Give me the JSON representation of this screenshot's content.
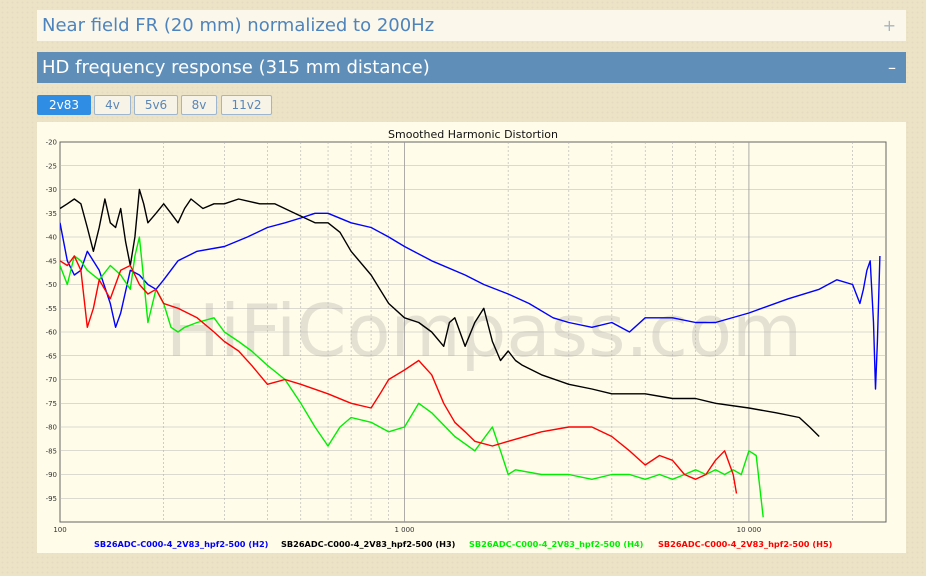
{
  "sections": {
    "near_field": {
      "title": "Near field FR (20 mm) normalized to 200Hz",
      "toggle": "+"
    },
    "hd_response": {
      "title": "HD frequency response (315 mm distance)",
      "toggle": "–"
    }
  },
  "tabs": [
    {
      "label": "2v83",
      "active": true
    },
    {
      "label": "4v",
      "active": false
    },
    {
      "label": "5v6",
      "active": false
    },
    {
      "label": "8v",
      "active": false
    },
    {
      "label": "11v2",
      "active": false
    }
  ],
  "watermark": "HiFiCompass.com",
  "colors": {
    "h2": "#0000ff",
    "h3": "#000000",
    "h4": "#00ee00",
    "h5": "#ff0000",
    "accent": "#5f8fb9"
  },
  "chart_data": {
    "type": "line",
    "title": "Smoothed Harmonic Distortion",
    "xlabel": "",
    "ylabel": "",
    "xscale": "log",
    "xlim": [
      100,
      25000
    ],
    "ylim": [
      -100,
      -20
    ],
    "x_tick_labels": [
      {
        "value": 100,
        "label": "100"
      },
      {
        "value": 1000,
        "label": "1 000"
      },
      {
        "value": 10000,
        "label": "10 000"
      }
    ],
    "y_ticks": [
      -20,
      -25,
      -30,
      -35,
      -40,
      -45,
      -50,
      -55,
      -60,
      -65,
      -70,
      -75,
      -80,
      -85,
      -90,
      -95
    ],
    "grid": true,
    "legend_position": "bottom",
    "series": [
      {
        "name": "SB26ADC-C000-4_2V83_hpf2-500 (H2)",
        "color": "#0000ff",
        "points": [
          [
            100,
            -37
          ],
          [
            105,
            -45
          ],
          [
            110,
            -48
          ],
          [
            115,
            -47
          ],
          [
            120,
            -43
          ],
          [
            130,
            -47
          ],
          [
            140,
            -54
          ],
          [
            145,
            -59
          ],
          [
            150,
            -56
          ],
          [
            160,
            -47
          ],
          [
            170,
            -48
          ],
          [
            180,
            -50
          ],
          [
            190,
            -51
          ],
          [
            200,
            -49
          ],
          [
            220,
            -45
          ],
          [
            250,
            -43
          ],
          [
            300,
            -42
          ],
          [
            350,
            -40
          ],
          [
            400,
            -38
          ],
          [
            450,
            -37
          ],
          [
            500,
            -36
          ],
          [
            550,
            -35
          ],
          [
            600,
            -35
          ],
          [
            700,
            -37
          ],
          [
            800,
            -38
          ],
          [
            900,
            -40
          ],
          [
            1000,
            -42
          ],
          [
            1200,
            -45
          ],
          [
            1500,
            -48
          ],
          [
            1700,
            -50
          ],
          [
            2000,
            -52
          ],
          [
            2300,
            -54
          ],
          [
            2700,
            -57
          ],
          [
            3000,
            -58
          ],
          [
            3500,
            -59
          ],
          [
            4000,
            -58
          ],
          [
            4500,
            -60
          ],
          [
            5000,
            -57
          ],
          [
            6000,
            -57
          ],
          [
            7000,
            -58
          ],
          [
            8000,
            -58
          ],
          [
            10000,
            -56
          ],
          [
            13000,
            -53
          ],
          [
            16000,
            -51
          ],
          [
            18000,
            -49
          ],
          [
            20000,
            -50
          ],
          [
            21000,
            -54
          ],
          [
            21500,
            -51
          ],
          [
            22000,
            -47
          ],
          [
            22500,
            -45
          ],
          [
            23000,
            -58
          ],
          [
            23300,
            -72
          ],
          [
            23600,
            -62
          ],
          [
            24000,
            -44
          ]
        ]
      },
      {
        "name": "SB26ADC-C000-4_2V83_hpf2-500 (H3)",
        "color": "#000000",
        "points": [
          [
            100,
            -34
          ],
          [
            105,
            -33
          ],
          [
            110,
            -32
          ],
          [
            115,
            -33
          ],
          [
            120,
            -38
          ],
          [
            125,
            -43
          ],
          [
            130,
            -38
          ],
          [
            135,
            -32
          ],
          [
            140,
            -37
          ],
          [
            145,
            -38
          ],
          [
            150,
            -34
          ],
          [
            155,
            -41
          ],
          [
            160,
            -46
          ],
          [
            165,
            -40
          ],
          [
            170,
            -30
          ],
          [
            175,
            -33
          ],
          [
            180,
            -37
          ],
          [
            190,
            -35
          ],
          [
            200,
            -33
          ],
          [
            210,
            -35
          ],
          [
            220,
            -37
          ],
          [
            230,
            -34
          ],
          [
            240,
            -32
          ],
          [
            260,
            -34
          ],
          [
            280,
            -33
          ],
          [
            300,
            -33
          ],
          [
            330,
            -32
          ],
          [
            380,
            -33
          ],
          [
            420,
            -33
          ],
          [
            480,
            -35
          ],
          [
            550,
            -37
          ],
          [
            600,
            -37
          ],
          [
            650,
            -39
          ],
          [
            700,
            -43
          ],
          [
            800,
            -48
          ],
          [
            900,
            -54
          ],
          [
            1000,
            -57
          ],
          [
            1100,
            -58
          ],
          [
            1200,
            -60
          ],
          [
            1300,
            -63
          ],
          [
            1350,
            -58
          ],
          [
            1400,
            -57
          ],
          [
            1500,
            -63
          ],
          [
            1600,
            -58
          ],
          [
            1700,
            -55
          ],
          [
            1800,
            -62
          ],
          [
            1900,
            -66
          ],
          [
            2000,
            -64
          ],
          [
            2100,
            -66
          ],
          [
            2200,
            -67
          ],
          [
            2500,
            -69
          ],
          [
            3000,
            -71
          ],
          [
            3500,
            -72
          ],
          [
            4000,
            -73
          ],
          [
            5000,
            -73
          ],
          [
            6000,
            -74
          ],
          [
            7000,
            -74
          ],
          [
            8000,
            -75
          ],
          [
            10000,
            -76
          ],
          [
            12000,
            -77
          ],
          [
            14000,
            -78
          ],
          [
            15000,
            -80
          ],
          [
            16000,
            -82
          ]
        ]
      },
      {
        "name": "SB26ADC-C000-4_2V83_hpf2-500 (H4)",
        "color": "#00ee00",
        "points": [
          [
            100,
            -46
          ],
          [
            105,
            -50
          ],
          [
            110,
            -44
          ],
          [
            115,
            -45
          ],
          [
            120,
            -47
          ],
          [
            130,
            -49
          ],
          [
            140,
            -46
          ],
          [
            150,
            -48
          ],
          [
            160,
            -51
          ],
          [
            165,
            -44
          ],
          [
            170,
            -40
          ],
          [
            175,
            -49
          ],
          [
            180,
            -58
          ],
          [
            190,
            -51
          ],
          [
            200,
            -54
          ],
          [
            210,
            -59
          ],
          [
            220,
            -60
          ],
          [
            230,
            -59
          ],
          [
            250,
            -58
          ],
          [
            280,
            -57
          ],
          [
            300,
            -60
          ],
          [
            330,
            -62
          ],
          [
            360,
            -64
          ],
          [
            400,
            -67
          ],
          [
            450,
            -70
          ],
          [
            500,
            -75
          ],
          [
            550,
            -80
          ],
          [
            600,
            -84
          ],
          [
            650,
            -80
          ],
          [
            700,
            -78
          ],
          [
            800,
            -79
          ],
          [
            900,
            -81
          ],
          [
            1000,
            -80
          ],
          [
            1100,
            -75
          ],
          [
            1200,
            -77
          ],
          [
            1400,
            -82
          ],
          [
            1600,
            -85
          ],
          [
            1800,
            -80
          ],
          [
            1900,
            -85
          ],
          [
            2000,
            -90
          ],
          [
            2100,
            -89
          ],
          [
            2500,
            -90
          ],
          [
            3000,
            -90
          ],
          [
            3500,
            -91
          ],
          [
            4000,
            -90
          ],
          [
            4500,
            -90
          ],
          [
            5000,
            -91
          ],
          [
            5500,
            -90
          ],
          [
            6000,
            -91
          ],
          [
            6500,
            -90
          ],
          [
            7000,
            -89
          ],
          [
            7500,
            -90
          ],
          [
            8000,
            -89
          ],
          [
            8500,
            -90
          ],
          [
            9000,
            -89
          ],
          [
            9500,
            -90
          ],
          [
            10000,
            -85
          ],
          [
            10500,
            -86
          ],
          [
            11000,
            -99
          ]
        ]
      },
      {
        "name": "SB26ADC-C000-4_2V83_hpf2-500 (H5)",
        "color": "#ff0000",
        "points": [
          [
            100,
            -45
          ],
          [
            105,
            -46
          ],
          [
            110,
            -44
          ],
          [
            115,
            -47
          ],
          [
            120,
            -59
          ],
          [
            125,
            -55
          ],
          [
            130,
            -49
          ],
          [
            140,
            -53
          ],
          [
            150,
            -47
          ],
          [
            160,
            -46
          ],
          [
            170,
            -50
          ],
          [
            180,
            -52
          ],
          [
            190,
            -51
          ],
          [
            200,
            -54
          ],
          [
            220,
            -55
          ],
          [
            250,
            -57
          ],
          [
            280,
            -60
          ],
          [
            300,
            -62
          ],
          [
            330,
            -64
          ],
          [
            360,
            -67
          ],
          [
            400,
            -71
          ],
          [
            450,
            -70
          ],
          [
            500,
            -71
          ],
          [
            600,
            -73
          ],
          [
            700,
            -75
          ],
          [
            800,
            -76
          ],
          [
            850,
            -73
          ],
          [
            900,
            -70
          ],
          [
            1000,
            -68
          ],
          [
            1100,
            -66
          ],
          [
            1200,
            -69
          ],
          [
            1300,
            -75
          ],
          [
            1400,
            -79
          ],
          [
            1500,
            -81
          ],
          [
            1600,
            -83
          ],
          [
            1800,
            -84
          ],
          [
            2000,
            -83
          ],
          [
            2500,
            -81
          ],
          [
            3000,
            -80
          ],
          [
            3500,
            -80
          ],
          [
            4000,
            -82
          ],
          [
            4500,
            -85
          ],
          [
            5000,
            -88
          ],
          [
            5500,
            -86
          ],
          [
            6000,
            -87
          ],
          [
            6500,
            -90
          ],
          [
            7000,
            -91
          ],
          [
            7500,
            -90
          ],
          [
            8000,
            -87
          ],
          [
            8500,
            -85
          ],
          [
            9000,
            -90
          ],
          [
            9200,
            -94
          ]
        ]
      }
    ]
  }
}
